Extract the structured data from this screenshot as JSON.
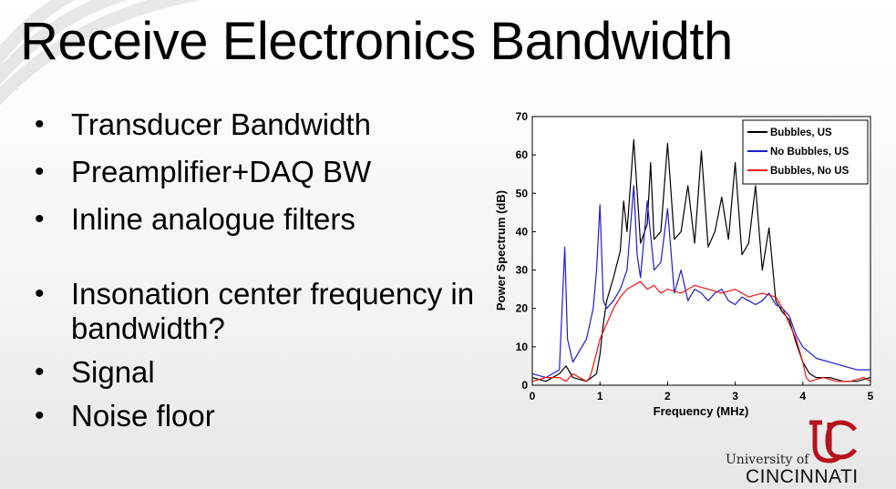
{
  "slide": {
    "title": "Receive Electronics Bandwidth",
    "bullets": [
      "Transducer Bandwidth",
      "Preamplifier+DAQ BW",
      "Inline analogue filters",
      "Insonation center frequency in bandwidth?",
      "Signal",
      "Noise floor"
    ]
  },
  "logo": {
    "line1": "University of",
    "line2": "CINCINNATI"
  },
  "chart_data": {
    "type": "line",
    "xlabel": "Frequency (MHz)",
    "ylabel": "Power Spectrum (dB)",
    "xlim": [
      0,
      5
    ],
    "ylim": [
      0,
      70
    ],
    "xticks": [
      0,
      1,
      2,
      3,
      4,
      5
    ],
    "yticks": [
      0,
      10,
      20,
      30,
      40,
      50,
      60,
      70
    ],
    "legend_position": "top-right",
    "series": [
      {
        "name": "Bubbles, US",
        "color": "#000000",
        "x": [
          0,
          0.2,
          0.4,
          0.5,
          0.6,
          0.8,
          0.95,
          1.0,
          1.05,
          1.1,
          1.2,
          1.3,
          1.35,
          1.4,
          1.5,
          1.6,
          1.7,
          1.75,
          1.8,
          1.9,
          2.0,
          2.1,
          2.2,
          2.3,
          2.4,
          2.5,
          2.6,
          2.7,
          2.8,
          2.9,
          3.0,
          3.1,
          3.2,
          3.3,
          3.4,
          3.5,
          3.6,
          3.7,
          3.8,
          3.9,
          4.0,
          4.1,
          4.2,
          4.4,
          4.6,
          4.8,
          5.0
        ],
        "y": [
          2,
          1,
          3,
          5,
          2,
          1,
          3,
          8,
          16,
          22,
          28,
          35,
          48,
          40,
          64,
          37,
          42,
          58,
          38,
          40,
          63,
          38,
          40,
          52,
          37,
          61,
          36,
          40,
          49,
          38,
          58,
          34,
          37,
          52,
          30,
          41,
          22,
          19,
          17,
          11,
          6,
          3,
          2,
          2,
          1,
          1,
          2
        ]
      },
      {
        "name": "No Bubbles, US",
        "color": "#1c1ccc",
        "x": [
          0,
          0.2,
          0.4,
          0.48,
          0.52,
          0.6,
          0.7,
          0.8,
          0.9,
          0.95,
          1.0,
          1.05,
          1.1,
          1.2,
          1.3,
          1.4,
          1.5,
          1.55,
          1.6,
          1.7,
          1.8,
          1.9,
          2.0,
          2.1,
          2.2,
          2.3,
          2.4,
          2.5,
          2.6,
          2.7,
          2.8,
          2.9,
          3.0,
          3.1,
          3.2,
          3.3,
          3.4,
          3.5,
          3.6,
          3.7,
          3.8,
          3.9,
          4.0,
          4.2,
          4.4,
          4.6,
          4.8,
          5.0
        ],
        "y": [
          3,
          2,
          4,
          36,
          12,
          6,
          9,
          12,
          20,
          30,
          47,
          22,
          20,
          22,
          25,
          30,
          52,
          34,
          28,
          48,
          30,
          32,
          46,
          24,
          30,
          22,
          25,
          24,
          22,
          24,
          25,
          22,
          21,
          23,
          22,
          21,
          22,
          24,
          21,
          20,
          18,
          13,
          10,
          7,
          6,
          5,
          4,
          4
        ]
      },
      {
        "name": "Bubbles, No US",
        "color": "#ee1111",
        "x": [
          0,
          0.2,
          0.4,
          0.5,
          0.6,
          0.8,
          0.85,
          0.9,
          1.0,
          1.1,
          1.2,
          1.3,
          1.4,
          1.5,
          1.6,
          1.7,
          1.8,
          1.9,
          2.0,
          2.2,
          2.4,
          2.6,
          2.8,
          3.0,
          3.2,
          3.4,
          3.6,
          3.7,
          3.8,
          3.9,
          4.0,
          4.05,
          4.1,
          4.3,
          4.5,
          4.7,
          4.9,
          5.0
        ],
        "y": [
          1,
          2,
          2,
          1,
          3,
          1,
          2,
          5,
          12,
          16,
          20,
          23,
          25,
          26,
          27,
          25,
          26,
          24,
          25,
          24,
          26,
          25,
          24,
          25,
          23,
          24,
          23,
          20,
          16,
          12,
          6,
          2,
          1,
          2,
          1,
          1,
          2,
          1
        ]
      }
    ]
  }
}
